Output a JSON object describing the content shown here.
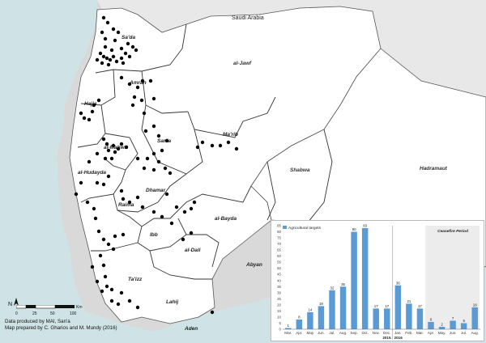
{
  "map": {
    "country_labels": {
      "saudi": "Saudi Arabia"
    },
    "governorates": [
      {
        "id": "sada",
        "label": "Sa'da"
      },
      {
        "id": "jawf",
        "label": "al-Jawf"
      },
      {
        "id": "amran",
        "label": "Amran"
      },
      {
        "id": "hajja",
        "label": "Hajja"
      },
      {
        "id": "marib",
        "label": "Ma'rib"
      },
      {
        "id": "sana",
        "label": "San'a"
      },
      {
        "id": "mahwit",
        "label": "al-Mahwit"
      },
      {
        "id": "hudayda",
        "label": "al-Hudayda"
      },
      {
        "id": "dhamar",
        "label": "Dhamar"
      },
      {
        "id": "raima",
        "label": "Raima"
      },
      {
        "id": "bayda",
        "label": "al-Bayda"
      },
      {
        "id": "ibb",
        "label": "Ibb"
      },
      {
        "id": "dali",
        "label": "al-Dali"
      },
      {
        "id": "taizz",
        "label": "Ta'izz"
      },
      {
        "id": "abyan",
        "label": "Abyan"
      },
      {
        "id": "lahij",
        "label": "Lahij"
      },
      {
        "id": "aden",
        "label": "Aden"
      },
      {
        "id": "shabwa",
        "label": "Shabwa"
      },
      {
        "id": "hadramaut",
        "label": "Hadramaut"
      }
    ],
    "colors": {
      "sea": "#cfe3e6",
      "land": "#ffffff",
      "outside": "#d9d9d9",
      "border": "#444444",
      "dot": "#000000"
    }
  },
  "legend": {
    "north": "N",
    "scale": {
      "ticks": [
        "0",
        "25",
        "50",
        "100"
      ],
      "unit": "Km"
    },
    "credits": [
      "Data produced by MAI, San'a",
      "Map prepared by C. Gharios and M. Mundy (2016)"
    ]
  },
  "chart_data": {
    "type": "bar",
    "series_name": "Agricultural targets",
    "color": "#5b9bd5",
    "ylim": [
      0,
      85
    ],
    "yticks": [
      0,
      5,
      10,
      15,
      20,
      25,
      30,
      35,
      40,
      45,
      50,
      55,
      60,
      65,
      70,
      75,
      80,
      85
    ],
    "categories": [
      "Mar.",
      "Apr.",
      "May",
      "Jun.",
      "Jul.",
      "Aug.",
      "Sep.",
      "Oct.",
      "Nov.",
      "Dec.",
      "Jan.",
      "Feb.",
      "Mar.",
      "Apr.",
      "May.",
      "Jun.",
      "Jul.",
      "Aug."
    ],
    "values": [
      1,
      8,
      14,
      19,
      32,
      35,
      80,
      83,
      17,
      17,
      36,
      21,
      17,
      6,
      2,
      7,
      5,
      18
    ],
    "years": [
      "2015",
      "2016"
    ],
    "annotation": "Ceasefire Period"
  }
}
